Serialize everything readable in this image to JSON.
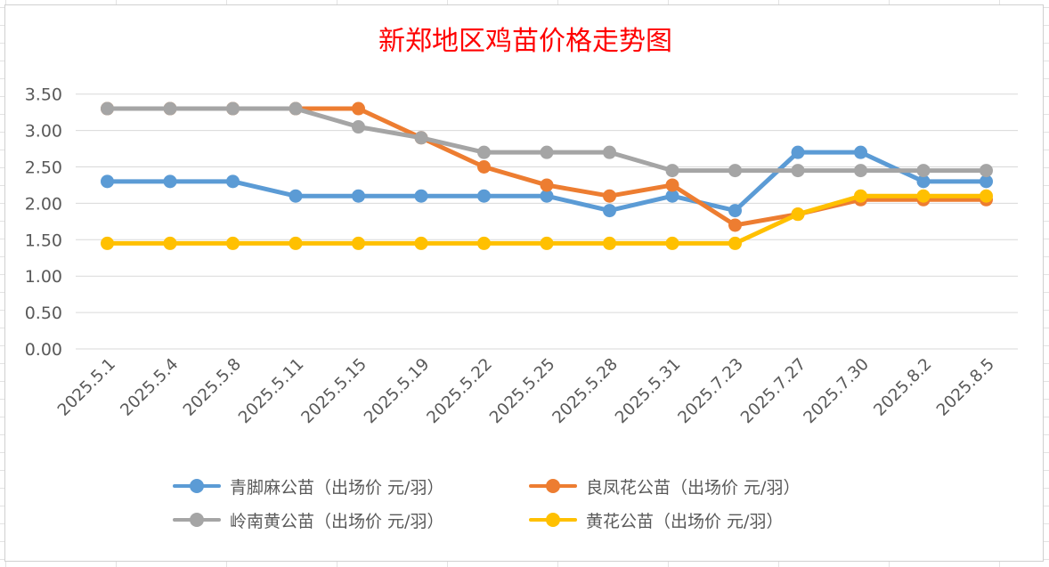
{
  "chart_data": {
    "type": "line",
    "title": "新郑地区鸡苗价格走势图",
    "categories": [
      "2025.5.1",
      "2025.5.4",
      "2025.5.8",
      "2025.5.11",
      "2025.5.15",
      "2025.5.19",
      "2025.5.22",
      "2025.5.25",
      "2025.5.28",
      "2025.5.31",
      "2025.7.23",
      "2025.7.27",
      "2025.7.30",
      "2025.8.2",
      "2025.8.5"
    ],
    "y_ticks": [
      "0.00",
      "0.50",
      "1.00",
      "1.50",
      "2.00",
      "2.50",
      "3.00",
      "3.50"
    ],
    "ylim": [
      0,
      3.5
    ],
    "grid": "horizontal",
    "legend_position": "bottom",
    "series": [
      {
        "name": "青脚麻公苗（出场价 元/羽）",
        "color": "#5b9bd5",
        "values": [
          2.3,
          2.3,
          2.3,
          2.1,
          2.1,
          2.1,
          2.1,
          2.1,
          1.9,
          2.1,
          1.9,
          2.7,
          2.7,
          2.3,
          2.3
        ]
      },
      {
        "name": "良凤花公苗（出场价 元/羽）",
        "color": "#ed7d31",
        "values": [
          3.3,
          3.3,
          3.3,
          3.3,
          3.3,
          2.9,
          2.5,
          2.25,
          2.1,
          2.25,
          1.7,
          1.85,
          2.05,
          2.05,
          2.05
        ]
      },
      {
        "name": "岭南黄公苗（出场价 元/羽）",
        "color": "#a5a5a5",
        "values": [
          3.3,
          3.3,
          3.3,
          3.3,
          3.05,
          2.9,
          2.7,
          2.7,
          2.7,
          2.45,
          2.45,
          2.45,
          2.45,
          2.45,
          2.45
        ]
      },
      {
        "name": "黄花公苗（出场价 元/羽）",
        "color": "#ffc000",
        "values": [
          1.45,
          1.45,
          1.45,
          1.45,
          1.45,
          1.45,
          1.45,
          1.45,
          1.45,
          1.45,
          1.45,
          1.85,
          2.1,
          2.1,
          2.1
        ]
      }
    ],
    "colors": {
      "title": "#ff0000",
      "axis_text": "#595959",
      "gridline": "#d9d9d9"
    }
  }
}
